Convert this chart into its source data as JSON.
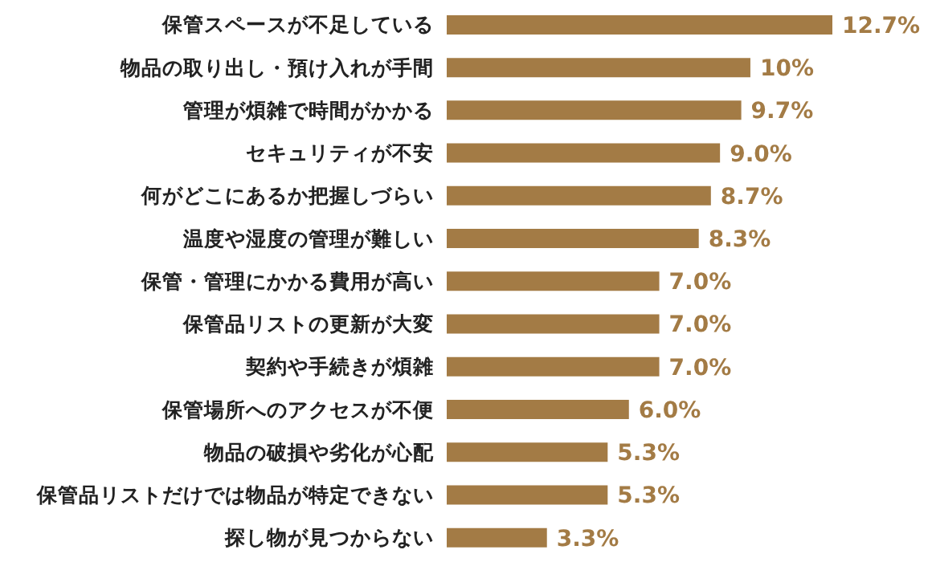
{
  "chart_data": {
    "type": "bar",
    "orientation": "horizontal",
    "categories": [
      "保管スペースが不足している",
      "物品の取り出し・預け入れが手間",
      "管理が煩雑で時間がかかる",
      "セキュリティが不安",
      "何がどこにあるか把握しづらい",
      "温度や湿度の管理が難しい",
      "保管・管理にかかる費用が高い",
      "保管品リストの更新が大変",
      "契約や手続きが煩雑",
      "保管場所へのアクセスが不便",
      "物品の破損や劣化が心配",
      "保管品リストだけでは物品が特定できない",
      "探し物が見つからない"
    ],
    "values": [
      12.7,
      10,
      9.7,
      9.0,
      8.7,
      8.3,
      7.0,
      7.0,
      7.0,
      6.0,
      5.3,
      5.3,
      3.3
    ],
    "value_labels": [
      "12.7%",
      "10%",
      "9.7%",
      "9.0%",
      "8.7%",
      "8.3%",
      "7.0%",
      "7.0%",
      "7.0%",
      "6.0%",
      "5.3%",
      "5.3%",
      "3.3%"
    ],
    "color": "#a37b45",
    "grid": false,
    "legend": false
  }
}
